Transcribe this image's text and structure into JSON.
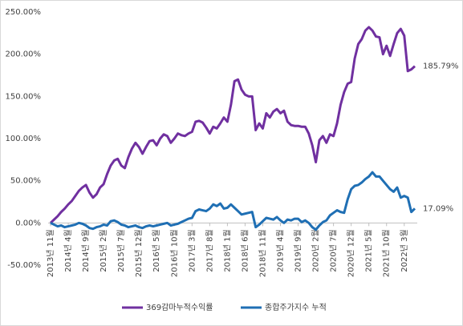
{
  "chart_data": {
    "type": "line",
    "categories": [
      "2013년 11월",
      null,
      null,
      null,
      null,
      "2014년 4월",
      null,
      null,
      null,
      null,
      "2014년 9월",
      null,
      null,
      null,
      null,
      "2015년 2월",
      null,
      null,
      null,
      null,
      "2015년 7월",
      null,
      null,
      null,
      null,
      "2015년 12월",
      null,
      null,
      null,
      null,
      "2016년 5월",
      null,
      null,
      null,
      null,
      "2016년 10월",
      null,
      null,
      null,
      null,
      "2017년 3월",
      null,
      null,
      null,
      null,
      "2017년 8월",
      null,
      null,
      null,
      null,
      "2018년 1월",
      null,
      null,
      null,
      null,
      "2018년 6월",
      null,
      null,
      null,
      null,
      "2018년 11월",
      null,
      null,
      null,
      null,
      "2019년 4월",
      null,
      null,
      null,
      null,
      "2019년 9월",
      null,
      null,
      null,
      null,
      "2020년 2월",
      null,
      null,
      null,
      null,
      "2020년 7월",
      null,
      null,
      null,
      null,
      "2020년 12월",
      null,
      null,
      null,
      null,
      "2021년 5월",
      null,
      null,
      null,
      null,
      "2021년 10월",
      null,
      null,
      null,
      null,
      "2022년 3월",
      null,
      null,
      null
    ],
    "series": [
      {
        "name": "369감마누적수익률",
        "color": "#7030a0",
        "values": [
          0,
          4,
          8,
          13,
          17,
          22,
          26,
          32,
          38,
          42,
          45,
          36,
          30,
          34,
          42,
          46,
          58,
          68,
          74,
          76,
          68,
          65,
          78,
          88,
          95,
          90,
          82,
          90,
          97,
          98,
          92,
          100,
          105,
          103,
          95,
          100,
          106,
          104,
          103,
          106,
          108,
          120,
          121,
          119,
          113,
          106,
          114,
          112,
          118,
          125,
          120,
          140,
          168,
          170,
          158,
          152,
          150,
          150,
          110,
          118,
          112,
          130,
          125,
          132,
          135,
          130,
          133,
          120,
          116,
          115,
          115,
          114,
          114,
          106,
          92,
          72,
          98,
          103,
          95,
          105,
          103,
          118,
          140,
          155,
          165,
          167,
          195,
          212,
          218,
          228,
          232,
          228,
          221,
          220,
          200,
          210,
          198,
          212,
          225,
          230,
          222,
          180,
          182,
          185.79
        ],
        "value_labels": [
          null,
          null,
          null,
          null,
          null,
          null,
          null,
          null,
          null,
          null,
          null,
          null,
          null,
          null,
          null,
          null,
          null,
          null,
          null,
          null,
          null,
          null,
          null,
          null,
          null,
          null,
          null,
          null,
          null,
          null,
          null,
          null,
          null,
          null,
          null,
          null,
          null,
          null,
          null,
          null,
          null,
          null,
          null,
          null,
          null,
          null,
          null,
          null,
          null,
          null,
          null,
          null,
          null,
          null,
          null,
          null,
          null,
          null,
          null,
          null,
          null,
          null,
          null,
          null,
          null,
          null,
          null,
          null,
          null,
          null,
          null,
          null,
          null,
          null,
          null,
          null,
          null,
          null,
          null,
          null,
          null,
          null,
          null,
          null,
          null,
          null,
          null,
          null,
          null,
          null,
          null,
          null,
          null,
          null,
          null,
          null,
          null,
          null,
          null,
          null,
          null,
          null,
          null,
          "185.79%"
        ]
      },
      {
        "name": "종합주가지수 누적",
        "color": "#1f6fb4",
        "values": [
          0,
          -2,
          -4,
          -3,
          -5,
          -4,
          -3,
          -2,
          0,
          -1,
          -3,
          -6,
          -7,
          -5,
          -4,
          -2,
          -3,
          2,
          3,
          1,
          -2,
          -3,
          -5,
          -4,
          -3,
          -5,
          -6,
          -4,
          -3,
          -4,
          -3,
          -2,
          -1,
          0,
          -3,
          -2,
          -1,
          1,
          3,
          5,
          6,
          14,
          16,
          15,
          14,
          17,
          22,
          20,
          23,
          17,
          18,
          22,
          18,
          14,
          10,
          11,
          12,
          13,
          -5,
          -2,
          2,
          6,
          5,
          4,
          7,
          3,
          0,
          4,
          3,
          5,
          5,
          1,
          3,
          0,
          -5,
          -8,
          -3,
          1,
          3,
          9,
          12,
          15,
          13,
          12,
          28,
          40,
          44,
          45,
          48,
          52,
          55,
          60,
          55,
          55,
          50,
          45,
          40,
          37,
          42,
          30,
          32,
          30,
          13,
          17.09
        ],
        "value_labels": [
          null,
          null,
          null,
          null,
          null,
          null,
          null,
          null,
          null,
          null,
          null,
          null,
          null,
          null,
          null,
          null,
          null,
          null,
          null,
          null,
          null,
          null,
          null,
          null,
          null,
          null,
          null,
          null,
          null,
          null,
          null,
          null,
          null,
          null,
          null,
          null,
          null,
          null,
          null,
          null,
          null,
          null,
          null,
          null,
          null,
          null,
          null,
          null,
          null,
          null,
          null,
          null,
          null,
          null,
          null,
          null,
          null,
          null,
          null,
          null,
          null,
          null,
          null,
          null,
          null,
          null,
          null,
          null,
          null,
          null,
          null,
          null,
          null,
          null,
          null,
          null,
          null,
          null,
          null,
          null,
          null,
          null,
          null,
          null,
          null,
          null,
          null,
          null,
          null,
          null,
          null,
          null,
          null,
          null,
          null,
          null,
          null,
          null,
          null,
          null,
          null,
          null,
          null,
          "17.09%"
        ]
      }
    ],
    "ylim": [
      -50,
      250
    ],
    "yticks": [
      {
        "value": -50,
        "label": "-50.00%"
      },
      {
        "value": 0,
        "label": "0.00%"
      },
      {
        "value": 50,
        "label": "50.00%"
      },
      {
        "value": 100,
        "label": "100.00%"
      },
      {
        "value": 150,
        "label": "150.00%"
      },
      {
        "value": 200,
        "label": "200.00%"
      },
      {
        "value": 250,
        "label": "250.00%"
      }
    ],
    "legend": "bottom"
  }
}
